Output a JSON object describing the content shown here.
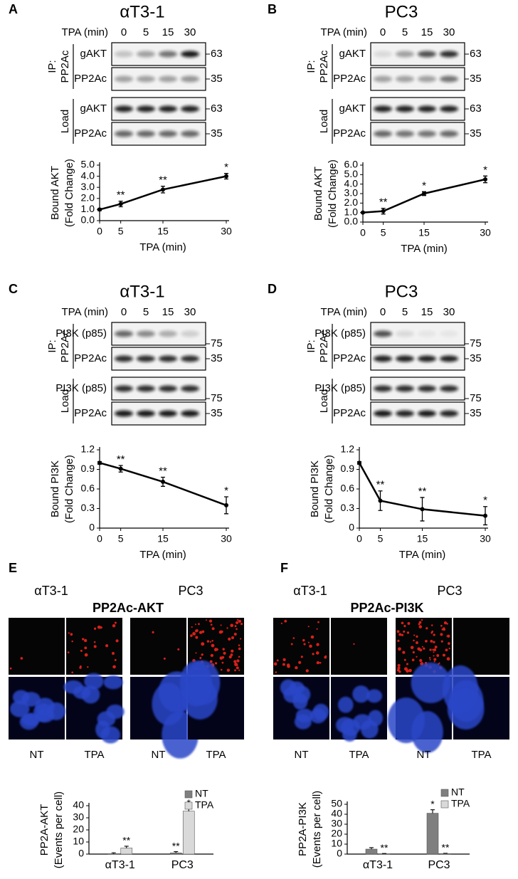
{
  "panels": [
    {
      "letter": "A",
      "title": "αT3-1",
      "lane_header": "TPA (min)",
      "lanes": [
        "0",
        "5",
        "15",
        "30"
      ],
      "groups": [
        {
          "label": [
            "IP:",
            "PP2Ac"
          ],
          "rows": [
            {
              "name": "gAKT",
              "marker": "63"
            },
            {
              "name": "PP2Ac",
              "marker": "35"
            }
          ]
        },
        {
          "label": [
            "Load"
          ],
          "rows": [
            {
              "name": "gAKT",
              "marker": "63"
            },
            {
              "name": "PP2Ac",
              "marker": "35"
            }
          ]
        }
      ]
    },
    {
      "letter": "B",
      "title": "PC3",
      "lane_header": "TPA (min)",
      "lanes": [
        "0",
        "5",
        "15",
        "30"
      ],
      "groups": [
        {
          "label": [
            "IP:",
            "PP2Ac"
          ],
          "rows": [
            {
              "name": "gAKT",
              "marker": "63"
            },
            {
              "name": "PP2Ac",
              "marker": "35"
            }
          ]
        },
        {
          "label": [
            "Load"
          ],
          "rows": [
            {
              "name": "gAKT",
              "marker": "63"
            },
            {
              "name": "PP2Ac",
              "marker": "35"
            }
          ]
        }
      ]
    },
    {
      "letter": "C",
      "title": "αT3-1",
      "lane_header": "TPA (min)",
      "lanes": [
        "0",
        "5",
        "15",
        "30"
      ],
      "groups": [
        {
          "label": [
            "IP:",
            "PP2Ac"
          ],
          "rows": [
            {
              "name": "PI3K (p85)",
              "marker": "75"
            },
            {
              "name": "PP2Ac",
              "marker": "35"
            }
          ]
        },
        {
          "label": [
            "Load"
          ],
          "rows": [
            {
              "name": "PI3K (p85)",
              "marker": "75"
            },
            {
              "name": "PP2Ac",
              "marker": "35"
            }
          ]
        }
      ]
    },
    {
      "letter": "D",
      "title": "PC3",
      "lane_header": "TPA (min)",
      "lanes": [
        "0",
        "5",
        "15",
        "30"
      ],
      "groups": [
        {
          "label": [
            "IP:",
            "PP2Ac"
          ],
          "rows": [
            {
              "name": "PI3K (p85)",
              "marker": "75"
            },
            {
              "name": "PP2Ac",
              "marker": "35"
            }
          ]
        },
        {
          "label": [
            "Load"
          ],
          "rows": [
            {
              "name": "PI3K (p85)",
              "marker": "75"
            },
            {
              "name": "PP2Ac",
              "marker": "35"
            }
          ]
        }
      ]
    }
  ],
  "imaging": [
    {
      "letter": "E",
      "cell_lines": [
        "αT3-1",
        "PC3"
      ],
      "title": "PP2Ac-AKT",
      "conditions": [
        "NT",
        "TPA",
        "NT",
        "TPA"
      ]
    },
    {
      "letter": "F",
      "cell_lines": [
        "αT3-1",
        "PC3"
      ],
      "title": "PP2Ac-PI3K",
      "conditions": [
        "NT",
        "TPA",
        "NT",
        "TPA"
      ]
    }
  ],
  "chart_data": [
    {
      "type": "line",
      "ylabel": [
        "Bound AKT",
        "(Fold Change)"
      ],
      "xlabel": "TPA (min)",
      "color": "#000000",
      "x": [
        0,
        5,
        15,
        30
      ],
      "values": [
        1.0,
        1.5,
        2.8,
        4.0
      ],
      "errors": [
        0.1,
        0.25,
        0.3,
        0.25
      ],
      "annotations": [
        null,
        "**",
        "**",
        "*"
      ],
      "xlim": [
        0,
        30
      ],
      "xticks": [
        0,
        5,
        15,
        30
      ],
      "ylim": [
        0,
        5
      ],
      "yticks": [
        {
          "value": 0,
          "label": "0.0"
        },
        {
          "value": 1,
          "label": "1.0"
        },
        {
          "value": 2,
          "label": "2.0"
        },
        {
          "value": 3,
          "label": "3.0"
        },
        {
          "value": 4,
          "label": "4.0"
        },
        {
          "value": 5,
          "label": "5.0"
        }
      ]
    },
    {
      "type": "line",
      "ylabel": [
        "Bound AKT",
        "(Fold Change)"
      ],
      "xlabel": "TPA (min)",
      "color": "#000000",
      "x": [
        0,
        5,
        15,
        30
      ],
      "values": [
        1.0,
        1.15,
        3.0,
        4.5
      ],
      "errors": [
        0.05,
        0.3,
        0.2,
        0.35
      ],
      "annotations": [
        null,
        "**",
        "*",
        "*"
      ],
      "xlim": [
        0,
        30
      ],
      "xticks": [
        0,
        5,
        15,
        30
      ],
      "ylim": [
        0,
        6
      ],
      "yticks": [
        {
          "value": 0,
          "label": "0.0"
        },
        {
          "value": 1,
          "label": "1.0"
        },
        {
          "value": 2,
          "label": "2.0"
        },
        {
          "value": 3,
          "label": "3.0"
        },
        {
          "value": 4,
          "label": "4.0"
        },
        {
          "value": 5,
          "label": "5.0"
        },
        {
          "value": 6,
          "label": "6.0"
        }
      ]
    },
    {
      "type": "line",
      "ylabel": [
        "Bound PI3K",
        "(Fold Change)"
      ],
      "xlabel": "TPA (min)",
      "color": "#000000",
      "x": [
        0,
        5,
        15,
        30
      ],
      "values": [
        1.0,
        0.91,
        0.71,
        0.35
      ],
      "errors": [
        0.02,
        0.05,
        0.07,
        0.13
      ],
      "annotations": [
        null,
        "**",
        "**",
        "*"
      ],
      "xlim": [
        0,
        30
      ],
      "xticks": [
        0,
        5,
        15,
        30
      ],
      "ylim": [
        0,
        1.2
      ],
      "yticks": [
        0,
        0.3,
        0.6,
        0.9,
        1.2
      ]
    },
    {
      "type": "line",
      "ylabel": [
        "Bound PI3K",
        "(Fold Change)"
      ],
      "xlabel": "TPA (min)",
      "color": "#000000",
      "x": [
        0,
        5,
        15,
        30
      ],
      "values": [
        1.0,
        0.42,
        0.29,
        0.19
      ],
      "errors": [
        0.02,
        0.15,
        0.18,
        0.14
      ],
      "annotations": [
        null,
        "**",
        "**",
        "*"
      ],
      "xlim": [
        0,
        30
      ],
      "xticks": [
        0,
        5,
        15,
        30
      ],
      "ylim": [
        0,
        1.2
      ],
      "yticks": [
        0,
        0.3,
        0.6,
        0.9,
        1.2
      ]
    },
    {
      "type": "bar",
      "ylabel": [
        "PP2A-AKT",
        "(Events per cell)"
      ],
      "categories": [
        "αT3-1",
        "PC3"
      ],
      "legend": "upper right",
      "series": [
        {
          "name": "NT",
          "color": "#7f7f7f",
          "values": [
            0.3,
            1.0
          ],
          "errors": [
            0.8,
            1.0
          ],
          "annotations": [
            null,
            "**"
          ]
        },
        {
          "name": "TPA",
          "color": "#d9d9d9",
          "values": [
            5.0,
            35.5
          ],
          "errors": [
            1.5,
            2.0
          ],
          "annotations": [
            "**",
            "*"
          ]
        }
      ],
      "ylim": [
        0,
        40
      ],
      "yticks": [
        0,
        10,
        20,
        30,
        40
      ]
    },
    {
      "type": "bar",
      "ylabel": [
        "PP2A-PI3K",
        "(Events per cell)"
      ],
      "categories": [
        "αT3-1",
        "PC3"
      ],
      "legend": "upper right",
      "series": [
        {
          "name": "NT",
          "color": "#7f7f7f",
          "values": [
            5.0,
            41.0
          ],
          "errors": [
            1.5,
            3.5
          ],
          "annotations": [
            null,
            "*"
          ]
        },
        {
          "name": "TPA",
          "color": "#d9d9d9",
          "values": [
            0.3,
            0.5
          ],
          "errors": [
            0.3,
            0.3
          ],
          "annotations": [
            "**",
            "**"
          ]
        }
      ],
      "ylim": [
        0,
        50
      ],
      "yticks": [
        0,
        10,
        20,
        30,
        40,
        50
      ]
    }
  ]
}
